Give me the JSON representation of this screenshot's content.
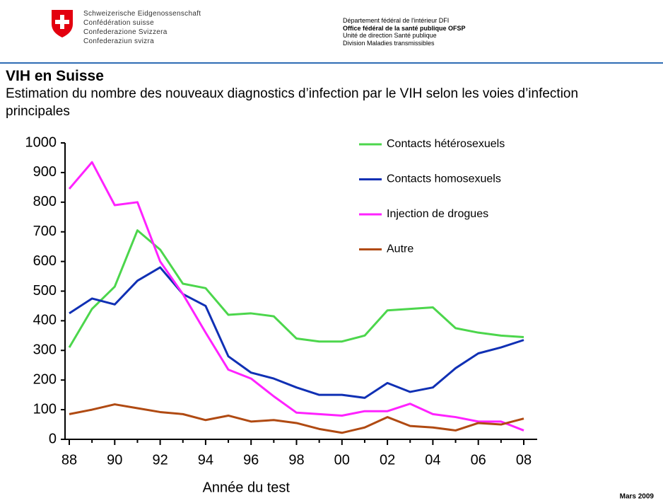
{
  "header": {
    "left_lines": [
      "Schweizerische Eidgenossenschaft",
      "Confédération suisse",
      "Confederazione Svizzera",
      "Confederaziun svizra"
    ],
    "right_lines": [
      "Département fédéral de l'intérieur DFI",
      "Office fédéral de la santé publique OFSP",
      "Unité de direction Santé publique",
      "Division Maladies transmissibles"
    ]
  },
  "title": "VIH en Suisse",
  "subtitle": "Estimation du nombre des nouveaux diagnostics d’infection par le VIH selon les voies d’infection principales",
  "footer": "Mars 2009",
  "chart_data": {
    "type": "line",
    "x_label": "Année du test",
    "categories": [
      "88",
      null,
      "90",
      null,
      "92",
      null,
      "94",
      null,
      "96",
      null,
      "98",
      null,
      "00",
      null,
      "02",
      null,
      "04",
      null,
      "06",
      null,
      "08"
    ],
    "ylim": [
      0,
      1000
    ],
    "yticks": [
      0,
      100,
      200,
      300,
      400,
      500,
      600,
      700,
      800,
      900,
      1000
    ],
    "legend": "upper right",
    "series": [
      {
        "name": "Contacts hétérosexuels",
        "color": "#4cd64c",
        "values": [
          310,
          440,
          515,
          705,
          640,
          525,
          510,
          420,
          425,
          415,
          340,
          330,
          330,
          350,
          435,
          440,
          445,
          375,
          360,
          350,
          345
        ]
      },
      {
        "name": "Contacts homosexuels",
        "color": "#1030b4",
        "values": [
          425,
          475,
          455,
          535,
          580,
          490,
          450,
          280,
          225,
          205,
          175,
          150,
          150,
          140,
          190,
          160,
          175,
          240,
          290,
          310,
          335
        ]
      },
      {
        "name": "Injection de drogues",
        "color": "#ff22ff",
        "values": [
          845,
          935,
          790,
          800,
          600,
          490,
          360,
          235,
          205,
          145,
          90,
          85,
          80,
          95,
          95,
          120,
          85,
          75,
          60,
          60,
          30
        ]
      },
      {
        "name": "Autre",
        "color": "#b04a12",
        "values": [
          85,
          100,
          118,
          105,
          92,
          85,
          65,
          80,
          60,
          65,
          55,
          35,
          22,
          40,
          75,
          45,
          40,
          30,
          55,
          50,
          70
        ]
      }
    ]
  }
}
